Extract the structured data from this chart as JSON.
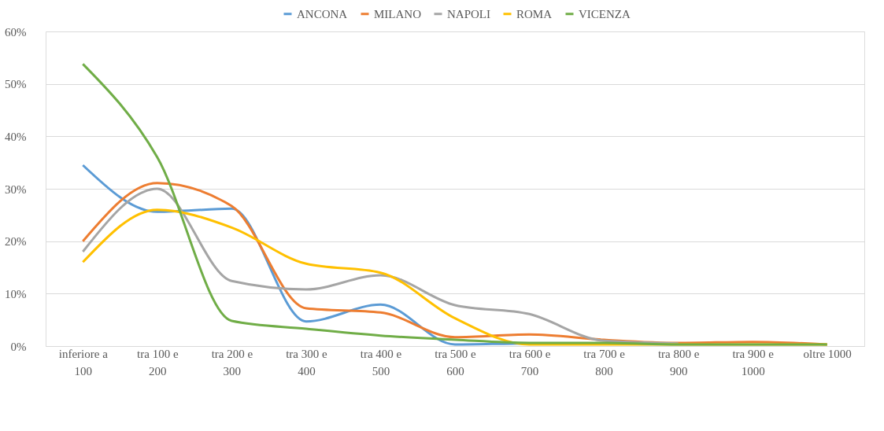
{
  "chart_data": {
    "type": "line",
    "categories": [
      "inferiore a 100",
      "tra 100 e 200",
      "tra 200 e 300",
      "tra 300 e 400",
      "tra 400 e 500",
      "tra 500 e 600",
      "tra 600 e 700",
      "tra 700 e 800",
      "tra 800 e 900",
      "tra 900 e 1000",
      "oltre 1000"
    ],
    "series": [
      {
        "name": "ANCONA",
        "color": "#5b9bd5",
        "values": [
          34.5,
          25.6,
          26.2,
          4.7,
          7.9,
          0.3,
          0.5,
          0.5,
          null,
          null,
          null
        ]
      },
      {
        "name": "MILANO",
        "color": "#ed7d31",
        "values": [
          20,
          31.1,
          26.7,
          7.2,
          6.4,
          1.7,
          2.2,
          1.2,
          0.6,
          0.8,
          0.3
        ]
      },
      {
        "name": "NAPOLI",
        "color": "#a5a5a5",
        "values": [
          18,
          30,
          12.4,
          10.8,
          13.5,
          7.8,
          6.1,
          1.0,
          0.5,
          null,
          null
        ]
      },
      {
        "name": "ROMA",
        "color": "#ffc000",
        "values": [
          16,
          26,
          22.6,
          15.7,
          14.0,
          5.3,
          0.3,
          0.3,
          0.3,
          0.3,
          0.3
        ]
      },
      {
        "name": "VICENZA",
        "color": "#70ad47",
        "values": [
          53.8,
          36,
          4.8,
          3.3,
          2.0,
          1.2,
          0.6,
          0.6,
          0.3,
          0.3,
          0.3
        ]
      }
    ],
    "ylim": [
      0,
      60
    ],
    "yticks": [
      {
        "value": 0,
        "label": "0%"
      },
      {
        "value": 10,
        "label": "10%"
      },
      {
        "value": 20,
        "label": "20%"
      },
      {
        "value": 30,
        "label": "30%"
      },
      {
        "value": 40,
        "label": "40%"
      },
      {
        "value": 50,
        "label": "50%"
      },
      {
        "value": 60,
        "label": "60%"
      }
    ],
    "grid": "y",
    "legend": "top",
    "marker": "none",
    "line_style": "solid"
  }
}
